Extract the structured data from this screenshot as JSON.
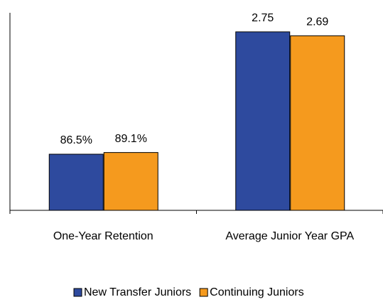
{
  "chart_data": {
    "type": "bar",
    "categories": [
      "One-Year Retention",
      "Average Junior Year GPA"
    ],
    "series": [
      {
        "name": "New Transfer Juniors",
        "color": "#2e4a9e",
        "values": [
          0.865,
          2.75
        ],
        "value_labels": [
          "86.5%",
          "2.75"
        ]
      },
      {
        "name": "Continuing Juniors",
        "color": "#f59a1e",
        "values": [
          0.891,
          2.69
        ],
        "value_labels": [
          "89.1%",
          "2.69"
        ]
      }
    ],
    "ylim": [
      0,
      3
    ],
    "legend": "bottom"
  }
}
